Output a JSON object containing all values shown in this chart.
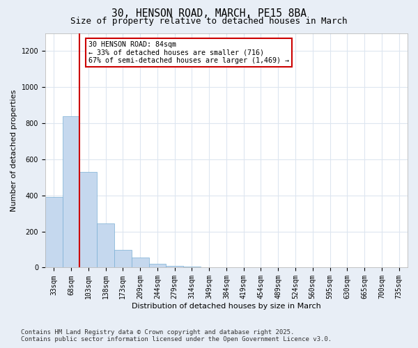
{
  "title1": "30, HENSON ROAD, MARCH, PE15 8BA",
  "title2": "Size of property relative to detached houses in March",
  "xlabel": "Distribution of detached houses by size in March",
  "ylabel": "Number of detached properties",
  "categories": [
    "33sqm",
    "68sqm",
    "103sqm",
    "138sqm",
    "173sqm",
    "209sqm",
    "244sqm",
    "279sqm",
    "314sqm",
    "349sqm",
    "384sqm",
    "419sqm",
    "454sqm",
    "489sqm",
    "524sqm",
    "560sqm",
    "595sqm",
    "630sqm",
    "665sqm",
    "700sqm",
    "735sqm"
  ],
  "values": [
    390,
    840,
    530,
    245,
    100,
    55,
    20,
    10,
    5,
    3,
    2,
    1,
    1,
    0,
    0,
    0,
    0,
    0,
    0,
    0,
    0
  ],
  "bar_color": "#c5d8ee",
  "bar_edge_color": "#7aafd4",
  "vline_color": "#cc0000",
  "vline_pos": 1.5,
  "annotation_box_text": "30 HENSON ROAD: 84sqm\n← 33% of detached houses are smaller (716)\n67% of semi-detached houses are larger (1,469) →",
  "annotation_box_color": "#cc0000",
  "ylim": [
    0,
    1300
  ],
  "yticks": [
    0,
    200,
    400,
    600,
    800,
    1000,
    1200
  ],
  "footer_text": "Contains HM Land Registry data © Crown copyright and database right 2025.\nContains public sector information licensed under the Open Government Licence v3.0.",
  "bg_color": "#e8eef6",
  "plot_bg_color": "#ffffff",
  "grid_color": "#dde6f0",
  "title1_fontsize": 10.5,
  "title2_fontsize": 9,
  "axis_fontsize": 8,
  "tick_fontsize": 7,
  "footer_fontsize": 6.5
}
